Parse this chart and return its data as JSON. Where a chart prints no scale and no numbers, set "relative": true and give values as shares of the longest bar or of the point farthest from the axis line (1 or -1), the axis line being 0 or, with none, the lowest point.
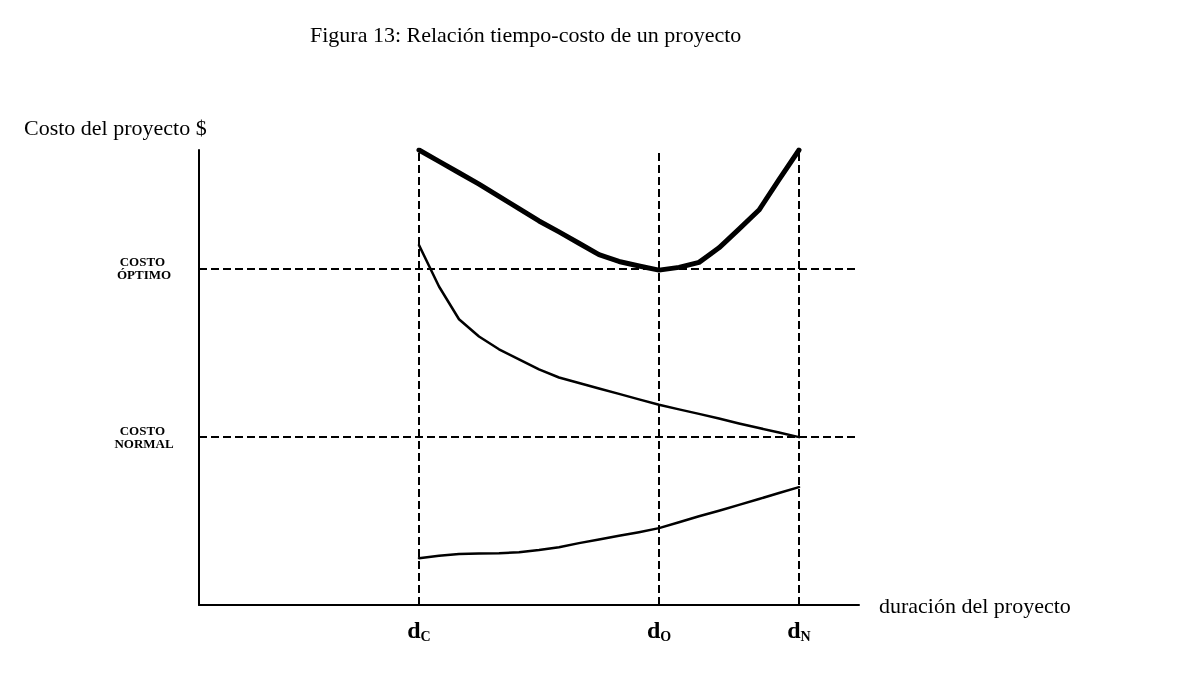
{
  "chart_data": {
    "type": "line",
    "relative": true,
    "title": "Figura 13: Relación tiempo-costo de un proyecto",
    "ylabel": "Costo del proyecto $",
    "xlabel": "duración del proyecto",
    "categories": [
      null,
      null,
      null,
      null,
      null,
      null,
      null,
      null,
      null,
      null,
      null,
      "d$_{C}$",
      null,
      null,
      null,
      null,
      null,
      null,
      null,
      null,
      null,
      null,
      null,
      "d$_{O}$",
      null,
      null,
      null,
      null,
      null,
      null,
      "d$_{N}$",
      null,
      null,
      null
    ],
    "grid": false,
    "marker": "none",
    "line_style": "solid",
    "series": [
      {
        "color": "#000000",
        "values": [
          null,
          null,
          null,
          null,
          null,
          null,
          null,
          null,
          null,
          null,
          null,
          1.0,
          0.975,
          0.95,
          0.925,
          0.898,
          0.871,
          0.844,
          0.82,
          0.795,
          0.77,
          0.755,
          0.745,
          0.736,
          0.742,
          0.753,
          0.785,
          0.826,
          0.868,
          0.935,
          1.0,
          null,
          null,
          null
        ]
      },
      {
        "color": "#000000",
        "values": [
          null,
          null,
          null,
          null,
          null,
          null,
          null,
          null,
          null,
          null,
          null,
          0.791,
          0.7,
          0.628,
          0.59,
          0.562,
          0.54,
          0.518,
          0.5,
          0.488,
          0.476,
          0.464,
          0.452,
          0.44,
          0.43,
          0.42,
          0.41,
          0.399,
          0.389,
          0.379,
          0.369,
          null,
          null,
          null
        ]
      },
      {
        "color": "#000000",
        "values": [
          null,
          null,
          null,
          null,
          null,
          null,
          null,
          null,
          null,
          null,
          null,
          0.103,
          0.108,
          0.112,
          0.113,
          0.114,
          0.116,
          0.121,
          0.127,
          0.136,
          0.144,
          0.152,
          0.16,
          0.169,
          0.182,
          0.195,
          0.207,
          0.22,
          0.233,
          0.246,
          0.259,
          null,
          null,
          null
        ]
      }
    ],
    "ref_lines": [
      {
        "axis": "x",
        "value": "d$_{C}$",
        "line_style": "dashed",
        "color": "#000000"
      },
      {
        "axis": "x",
        "value": "d$_{O}$",
        "line_style": "dashed",
        "color": "#000000"
      },
      {
        "axis": "x",
        "value": "d$_{N}$",
        "line_style": "dashed",
        "color": "#000000"
      },
      {
        "axis": "y",
        "value": 0.736,
        "label": "COSTO ÓPTIMO",
        "line_style": "dashed",
        "color": "#000000"
      },
      {
        "axis": "y",
        "value": 0.369,
        "label": "COSTO NORMAL",
        "line_style": "dashed",
        "color": "#000000"
      }
    ]
  }
}
